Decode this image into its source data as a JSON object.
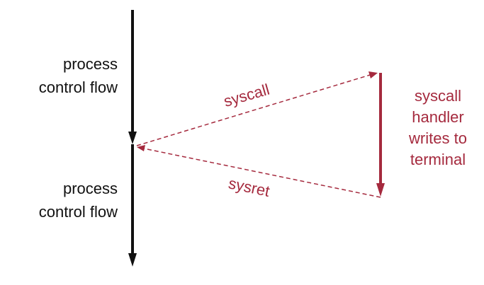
{
  "diagram": {
    "top_label": {
      "line1": "process",
      "line2": "control flow"
    },
    "bottom_label": {
      "line1": "process",
      "line2": "control flow"
    },
    "syscall_label": "syscall",
    "sysret_label": "sysret",
    "handler_label": {
      "line1": "syscall",
      "line2": "handler",
      "line3": "writes to",
      "line4": "terminal"
    }
  },
  "colors": {
    "process_line": "#111111",
    "kernel": "#a52a3e"
  }
}
